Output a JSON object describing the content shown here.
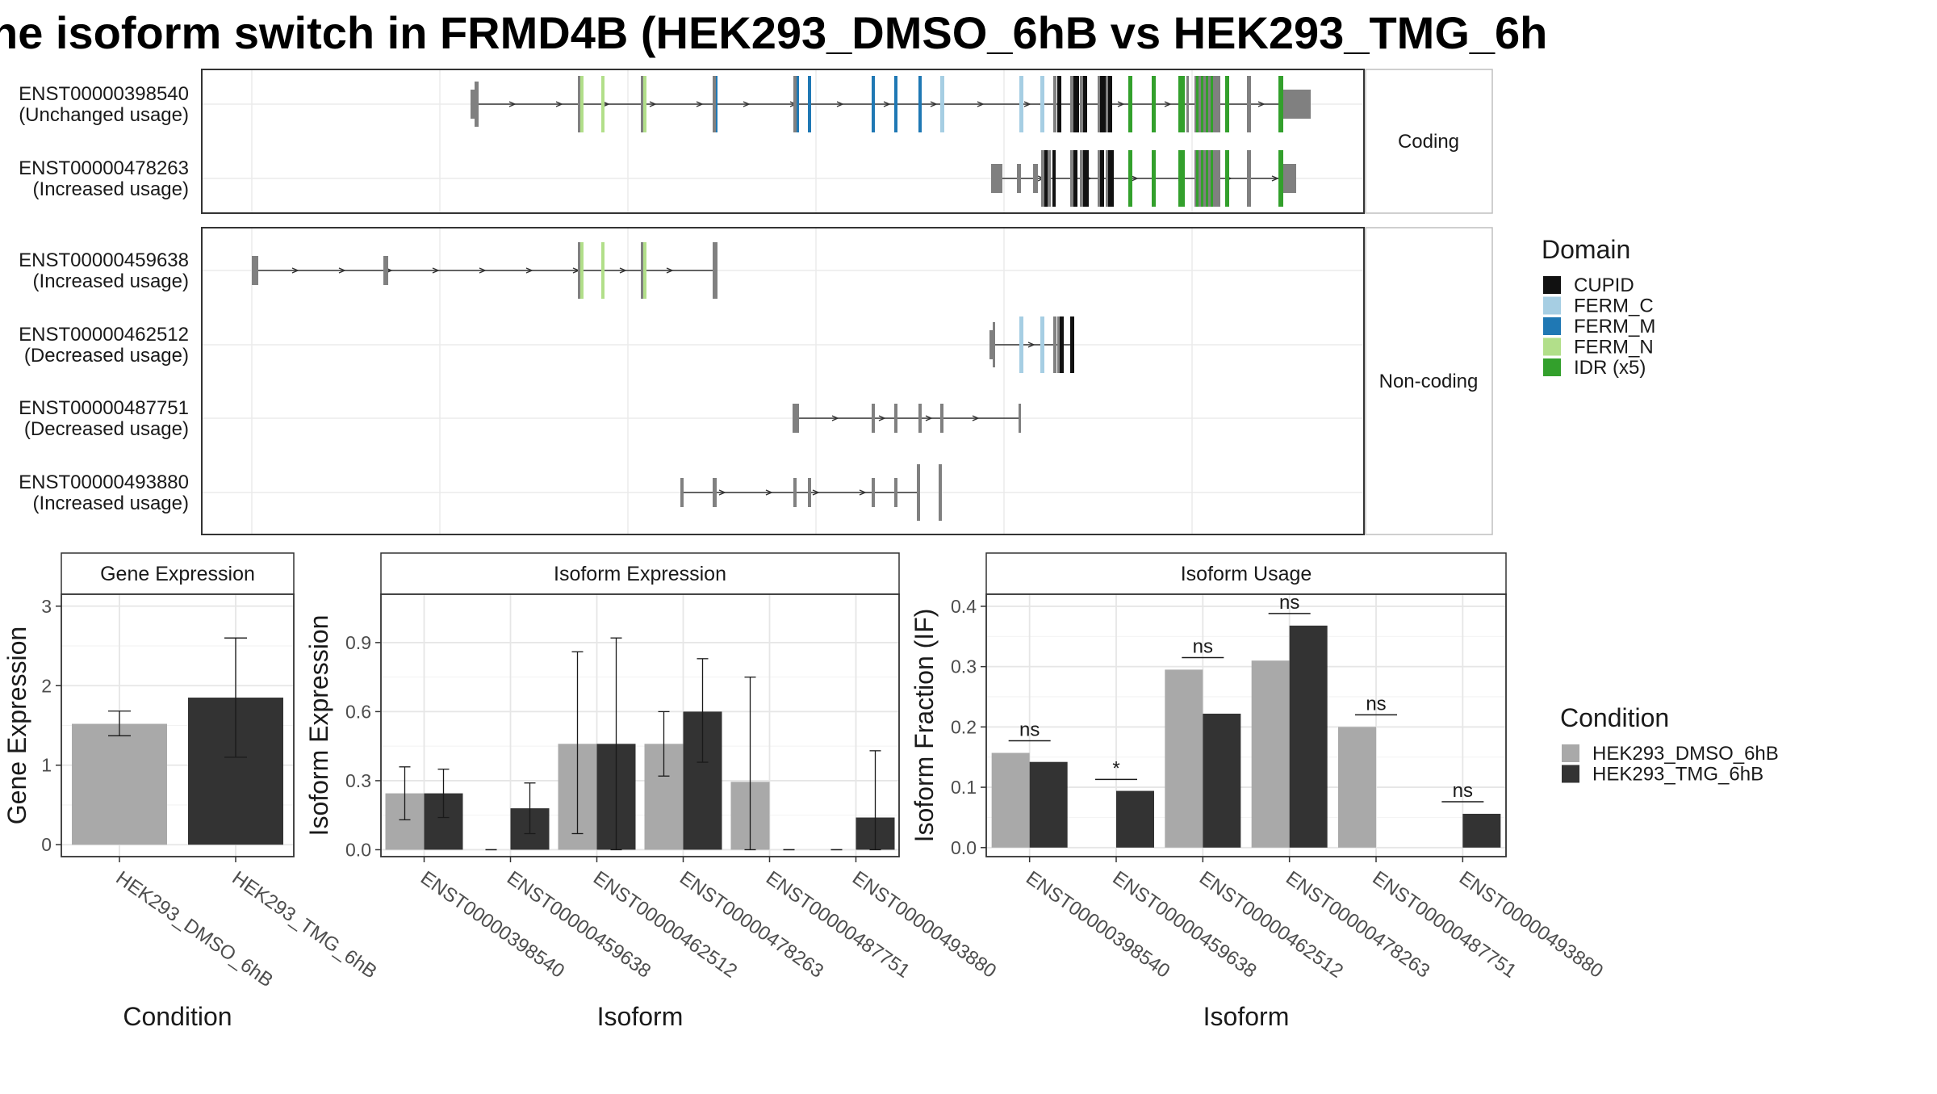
{
  "title": "ne isoform switch in FRMD4B (HEK293_DMSO_6hB vs HEK293_TMG_6h",
  "colors": {
    "CUPID": "#111111",
    "FERM_C": "#a6cee3",
    "FERM_M": "#1f78b4",
    "FERM_N": "#b2df8a",
    "IDR": "#33a02c",
    "exon": "#808080",
    "dmso": "#a9a9a9",
    "tmg": "#333333"
  },
  "panels": {
    "coding": {
      "label": "Coding",
      "isoforms": [
        {
          "id": "ENST00000398540",
          "usage": "(Unchanged usage)"
        },
        {
          "id": "ENST00000478263",
          "usage": "(Increased usage)"
        }
      ]
    },
    "noncoding": {
      "label": "Non-coding",
      "isoforms": [
        {
          "id": "ENST00000459638",
          "usage": "(Increased usage)"
        },
        {
          "id": "ENST00000462512",
          "usage": "(Decreased usage)"
        },
        {
          "id": "ENST00000487751",
          "usage": "(Decreased usage)"
        },
        {
          "id": "ENST00000493880",
          "usage": "(Increased usage)"
        }
      ]
    }
  },
  "domain_legend": {
    "title": "Domain",
    "items": [
      {
        "label": "CUPID",
        "color_key": "CUPID"
      },
      {
        "label": "FERM_C",
        "color_key": "FERM_C"
      },
      {
        "label": "FERM_M",
        "color_key": "FERM_M"
      },
      {
        "label": "FERM_N",
        "color_key": "FERM_N"
      },
      {
        "label": "IDR (x5)",
        "color_key": "IDR"
      }
    ]
  },
  "condition_legend": {
    "title": "Condition",
    "items": [
      {
        "label": "HEK293_DMSO_6hB",
        "color_key": "dmso"
      },
      {
        "label": "HEK293_TMG_6hB",
        "color_key": "tmg"
      }
    ]
  },
  "chart_data": [
    {
      "type": "bar",
      "title": "Gene Expression",
      "xlabel": "Condition",
      "ylabel": "Gene Expression",
      "ylim": [
        -0.15,
        3.15
      ],
      "yticks": [
        0,
        1,
        2,
        3
      ],
      "categories": [
        "HEK293_DMSO_6hB",
        "HEK293_TMG_6hB"
      ],
      "values": [
        1.52,
        1.85
      ],
      "errors": [
        [
          1.37,
          1.68
        ],
        [
          1.1,
          2.6
        ]
      ]
    },
    {
      "type": "bar",
      "title": "Isoform Expression",
      "xlabel": "Isoform",
      "ylabel": "Isoform Expression",
      "ylim": [
        -0.03,
        1.11
      ],
      "yticks": [
        0.0,
        0.3,
        0.6,
        0.9
      ],
      "ytick_labels": [
        "0.0",
        "0.3",
        "0.6",
        "0.9"
      ],
      "categories": [
        "ENST00000398540",
        "ENST00000459638",
        "ENST00000462512",
        "ENST00000478263",
        "ENST00000487751",
        "ENST00000493880"
      ],
      "series": [
        {
          "name": "HEK293_DMSO_6hB",
          "values": [
            0.245,
            0.0,
            0.46,
            0.46,
            0.295,
            0.0
          ],
          "errors": [
            [
              0.13,
              0.36
            ],
            [
              0.0,
              0.0
            ],
            [
              0.07,
              0.86
            ],
            [
              0.32,
              0.6
            ],
            [
              0.0,
              0.75
            ],
            [
              0.0,
              0.0
            ]
          ]
        },
        {
          "name": "HEK293_TMG_6hB",
          "values": [
            0.245,
            0.18,
            0.46,
            0.6,
            0.0,
            0.14
          ],
          "errors": [
            [
              0.14,
              0.35
            ],
            [
              0.07,
              0.29
            ],
            [
              0.0,
              0.92
            ],
            [
              0.38,
              0.83
            ],
            [
              0.0,
              0.0
            ],
            [
              0.0,
              0.43
            ]
          ]
        }
      ]
    },
    {
      "type": "bar",
      "title": "Isoform Usage",
      "xlabel": "Isoform",
      "ylabel": "Isoform Fraction (IF)",
      "ylim": [
        -0.015,
        0.42
      ],
      "yticks": [
        0.0,
        0.1,
        0.2,
        0.3,
        0.4
      ],
      "ytick_labels": [
        "0.0",
        "0.1",
        "0.2",
        "0.3",
        "0.4"
      ],
      "categories": [
        "ENST00000398540",
        "ENST00000459638",
        "ENST00000462512",
        "ENST00000478263",
        "ENST00000487751",
        "ENST00000493880"
      ],
      "series": [
        {
          "name": "HEK293_DMSO_6hB",
          "values": [
            0.157,
            0.0,
            0.295,
            0.31,
            0.2,
            0.0
          ]
        },
        {
          "name": "HEK293_TMG_6hB",
          "values": [
            0.142,
            0.094,
            0.222,
            0.368,
            0.0,
            0.056
          ]
        }
      ],
      "significance": [
        {
          "label": "ns",
          "y": 0.177
        },
        {
          "label": "*",
          "y": 0.113
        },
        {
          "label": "ns",
          "y": 0.315
        },
        {
          "label": "ns",
          "y": 0.388
        },
        {
          "label": "ns",
          "y": 0.22
        },
        {
          "label": "ns",
          "y": 0.076
        }
      ]
    }
  ]
}
